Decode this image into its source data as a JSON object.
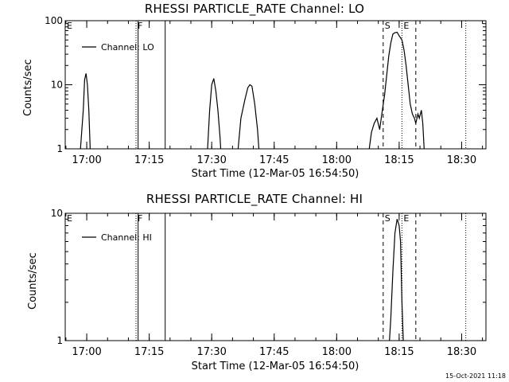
{
  "chart_data": [
    {
      "type": "line",
      "title": "RHESSI PARTICLE_RATE Channel: LO",
      "xlabel": "Start Time (12-Mar-05 16:54:50)",
      "ylabel": "Counts/sec",
      "yscale": "log",
      "ylim": [
        1,
        100
      ],
      "yticks": [
        1,
        10,
        100
      ],
      "xlim": [
        "16:54:50",
        "18:35:50"
      ],
      "xticks": [
        "17:00",
        "17:15",
        "17:30",
        "17:45",
        "18:00",
        "18:15",
        "18:30"
      ],
      "legend": {
        "label": "Channel: LO",
        "placement": "top-left"
      },
      "grid": false,
      "markers": [
        {
          "time": "16:54:50",
          "label": "E",
          "style": "dotted"
        },
        {
          "time": "17:11:50",
          "label": "F",
          "style": "dotted"
        },
        {
          "time": "17:12:20",
          "label": "",
          "style": "solid"
        },
        {
          "time": "17:18:50",
          "label": "",
          "style": "solid"
        },
        {
          "time": "18:11:10",
          "label": "S",
          "style": "dashed"
        },
        {
          "time": "18:15:40",
          "label": "E",
          "style": "dotted"
        },
        {
          "time": "18:19:00",
          "label": "",
          "style": "dashed"
        },
        {
          "time": "18:31:00",
          "label": "",
          "style": "dotted"
        }
      ],
      "series": [
        {
          "name": "Channel: LO",
          "segments": [
            [
              [
                "16:58:30",
                1
              ],
              [
                "16:59:10",
                4
              ],
              [
                "16:59:30",
                12
              ],
              [
                "16:59:50",
                15
              ],
              [
                "17:00:10",
                10
              ],
              [
                "17:00:30",
                4
              ],
              [
                "17:00:50",
                1
              ]
            ],
            [
              [
                "17:29:00",
                1
              ],
              [
                "17:29:30",
                4
              ],
              [
                "17:30:00",
                10
              ],
              [
                "17:30:30",
                12.5
              ],
              [
                "17:31:00",
                8
              ],
              [
                "17:31:30",
                4
              ],
              [
                "17:32:00",
                1.5
              ],
              [
                "17:32:10",
                1
              ]
            ],
            [
              [
                "17:36:20",
                1
              ],
              [
                "17:37:00",
                3
              ],
              [
                "17:38:00",
                6
              ],
              [
                "17:38:40",
                9
              ],
              [
                "17:39:10",
                10
              ],
              [
                "17:39:40",
                9.5
              ],
              [
                "17:40:20",
                5
              ],
              [
                "17:41:00",
                2
              ],
              [
                "17:41:20",
                1
              ]
            ],
            [
              [
                "18:07:50",
                1
              ],
              [
                "18:08:20",
                1.8
              ],
              [
                "18:09:00",
                2.5
              ],
              [
                "18:09:40",
                3
              ],
              [
                "18:10:20",
                2
              ],
              [
                "18:10:50",
                3.5
              ],
              [
                "18:11:30",
                7
              ],
              [
                "18:12:00",
                14
              ],
              [
                "18:12:30",
                28
              ],
              [
                "18:13:00",
                45
              ],
              [
                "18:13:30",
                62
              ],
              [
                "18:14:00",
                65
              ],
              [
                "18:14:30",
                66
              ],
              [
                "18:15:00",
                58
              ],
              [
                "18:15:40",
                50
              ],
              [
                "18:16:10",
                35
              ],
              [
                "18:16:40",
                20
              ],
              [
                "18:17:10",
                10
              ],
              [
                "18:17:40",
                5
              ],
              [
                "18:18:10",
                3.5
              ],
              [
                "18:18:40",
                3
              ],
              [
                "18:19:00",
                2.5
              ],
              [
                "18:19:30",
                3.5
              ],
              [
                "18:19:50",
                3
              ],
              [
                "18:20:20",
                4
              ],
              [
                "18:20:40",
                2.5
              ],
              [
                "18:21:00",
                1
              ]
            ]
          ]
        }
      ]
    },
    {
      "type": "line",
      "title": "RHESSI PARTICLE_RATE Channel: HI",
      "xlabel": "Start Time (12-Mar-05 16:54:50)",
      "ylabel": "Counts/sec",
      "yscale": "log",
      "ylim": [
        1,
        10
      ],
      "yticks": [
        1,
        10
      ],
      "xlim": [
        "16:54:50",
        "18:35:50"
      ],
      "xticks": [
        "17:00",
        "17:15",
        "17:30",
        "17:45",
        "18:00",
        "18:15",
        "18:30"
      ],
      "legend": {
        "label": "Channel: HI",
        "placement": "top-left"
      },
      "grid": false,
      "markers": [
        {
          "time": "16:54:50",
          "label": "E",
          "style": "dotted"
        },
        {
          "time": "17:11:50",
          "label": "F",
          "style": "dotted"
        },
        {
          "time": "17:12:20",
          "label": "",
          "style": "solid"
        },
        {
          "time": "17:18:50",
          "label": "",
          "style": "solid"
        },
        {
          "time": "18:11:10",
          "label": "S",
          "style": "dashed"
        },
        {
          "time": "18:15:40",
          "label": "E",
          "style": "dotted"
        },
        {
          "time": "18:19:00",
          "label": "",
          "style": "dashed"
        },
        {
          "time": "18:31:00",
          "label": "",
          "style": "dotted"
        }
      ],
      "series": [
        {
          "name": "Channel: HI",
          "segments": [
            [
              [
                "18:12:40",
                1
              ],
              [
                "18:13:00",
                1.5
              ],
              [
                "18:13:30",
                3.5
              ],
              [
                "18:14:00",
                7
              ],
              [
                "18:14:30",
                9
              ],
              [
                "18:15:00",
                8
              ],
              [
                "18:15:20",
                6
              ],
              [
                "18:15:40",
                2
              ],
              [
                "18:16:00",
                1
              ]
            ]
          ]
        }
      ]
    }
  ],
  "footer": {
    "timestamp": "15-Oct-2021 11:18"
  }
}
